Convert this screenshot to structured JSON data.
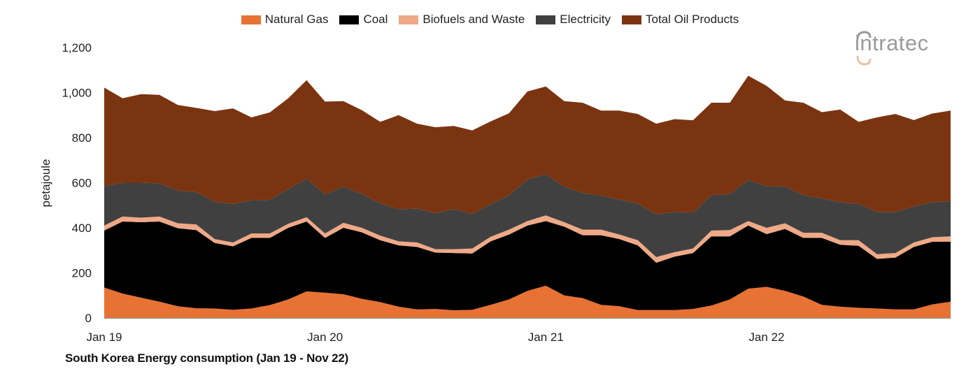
{
  "logo": {
    "text": "intratec"
  },
  "caption": "South Korea Energy consumption (Jan 19 - Nov 22)",
  "chart_data": {
    "type": "area",
    "stacked": true,
    "title": "South Korea Energy consumption (Jan 19 - Nov 22)",
    "xlabel": "",
    "ylabel": "petajoule",
    "ylim": [
      0,
      1200
    ],
    "yticks": [
      0,
      200,
      400,
      600,
      800,
      1000,
      1200
    ],
    "ytick_labels": [
      "0",
      "200",
      "400",
      "600",
      "800",
      "1,000",
      "1,200"
    ],
    "xtick_labels": [
      "Jan 19",
      "Jan 20",
      "Jan 21",
      "Jan 22"
    ],
    "grid": false,
    "legend_position": "top",
    "categories": [
      "Jan 19",
      "Feb 19",
      "Mar 19",
      "Apr 19",
      "May 19",
      "Jun 19",
      "Jul 19",
      "Aug 19",
      "Sep 19",
      "Oct 19",
      "Nov 19",
      "Dec 19",
      "Jan 20",
      "Feb 20",
      "Mar 20",
      "Apr 20",
      "May 20",
      "Jun 20",
      "Jul 20",
      "Aug 20",
      "Sep 20",
      "Oct 20",
      "Nov 20",
      "Dec 20",
      "Jan 21",
      "Feb 21",
      "Mar 21",
      "Apr 21",
      "May 21",
      "Jun 21",
      "Jul 21",
      "Aug 21",
      "Sep 21",
      "Oct 21",
      "Nov 21",
      "Dec 21",
      "Jan 22",
      "Feb 22",
      "Mar 22",
      "Apr 22",
      "May 22",
      "Jun 22",
      "Jul 22",
      "Aug 22",
      "Sep 22",
      "Oct 22",
      "Nov 22"
    ],
    "series": [
      {
        "name": "Natural Gas",
        "color": "#E87134",
        "values": [
          135,
          108,
          90,
          72,
          52,
          43,
          42,
          36,
          42,
          57,
          82,
          118,
          112,
          105,
          85,
          70,
          50,
          38,
          40,
          34,
          36,
          58,
          82,
          120,
          143,
          100,
          88,
          58,
          52,
          35,
          35,
          35,
          40,
          55,
          82,
          130,
          138,
          120,
          95,
          58,
          50,
          45,
          42,
          38,
          38,
          60,
          72
        ]
      },
      {
        "name": "Coal",
        "color": "#000000",
        "values": [
          253,
          320,
          335,
          356,
          346,
          347,
          291,
          282,
          313,
          298,
          318,
          310,
          243,
          295,
          295,
          275,
          272,
          277,
          250,
          254,
          250,
          282,
          288,
          290,
          287,
          305,
          279,
          309,
          298,
          287,
          210,
          237,
          248,
          307,
          280,
          280,
          234,
          275,
          260,
          297,
          275,
          275,
          220,
          230,
          277,
          278,
          266
        ]
      },
      {
        "name": "Biofuels and Waste",
        "color": "#F0A987",
        "values": [
          22,
          22,
          20,
          22,
          22,
          25,
          17,
          17,
          20,
          20,
          18,
          19,
          20,
          22,
          20,
          20,
          18,
          20,
          15,
          17,
          22,
          20,
          22,
          20,
          25,
          20,
          25,
          25,
          20,
          23,
          25,
          20,
          20,
          26,
          28,
          20,
          28,
          25,
          23,
          23,
          20,
          25,
          21,
          20,
          20,
          20,
          24
        ]
      },
      {
        "name": "Electricity",
        "color": "#404040",
        "values": [
          175,
          150,
          155,
          147,
          145,
          143,
          166,
          171,
          147,
          149,
          154,
          171,
          173,
          160,
          150,
          143,
          142,
          150,
          160,
          178,
          154,
          145,
          153,
          185,
          183,
          157,
          163,
          151,
          155,
          163,
          190,
          178,
          160,
          157,
          160,
          182,
          185,
          163,
          167,
          152,
          168,
          162,
          187,
          182,
          160,
          155,
          156
        ]
      },
      {
        "name": "Total Oil Products",
        "color": "#7B3410",
        "values": [
          437,
          375,
          393,
          393,
          380,
          374,
          402,
          424,
          368,
          388,
          403,
          437,
          412,
          380,
          372,
          362,
          418,
          377,
          381,
          369,
          370,
          367,
          363,
          390,
          389,
          380,
          400,
          377,
          395,
          397,
          402,
          412,
          409,
          410,
          405,
          463,
          445,
          382,
          410,
          383,
          412,
          363,
          420,
          435,
          383,
          394,
          402
        ]
      }
    ]
  }
}
